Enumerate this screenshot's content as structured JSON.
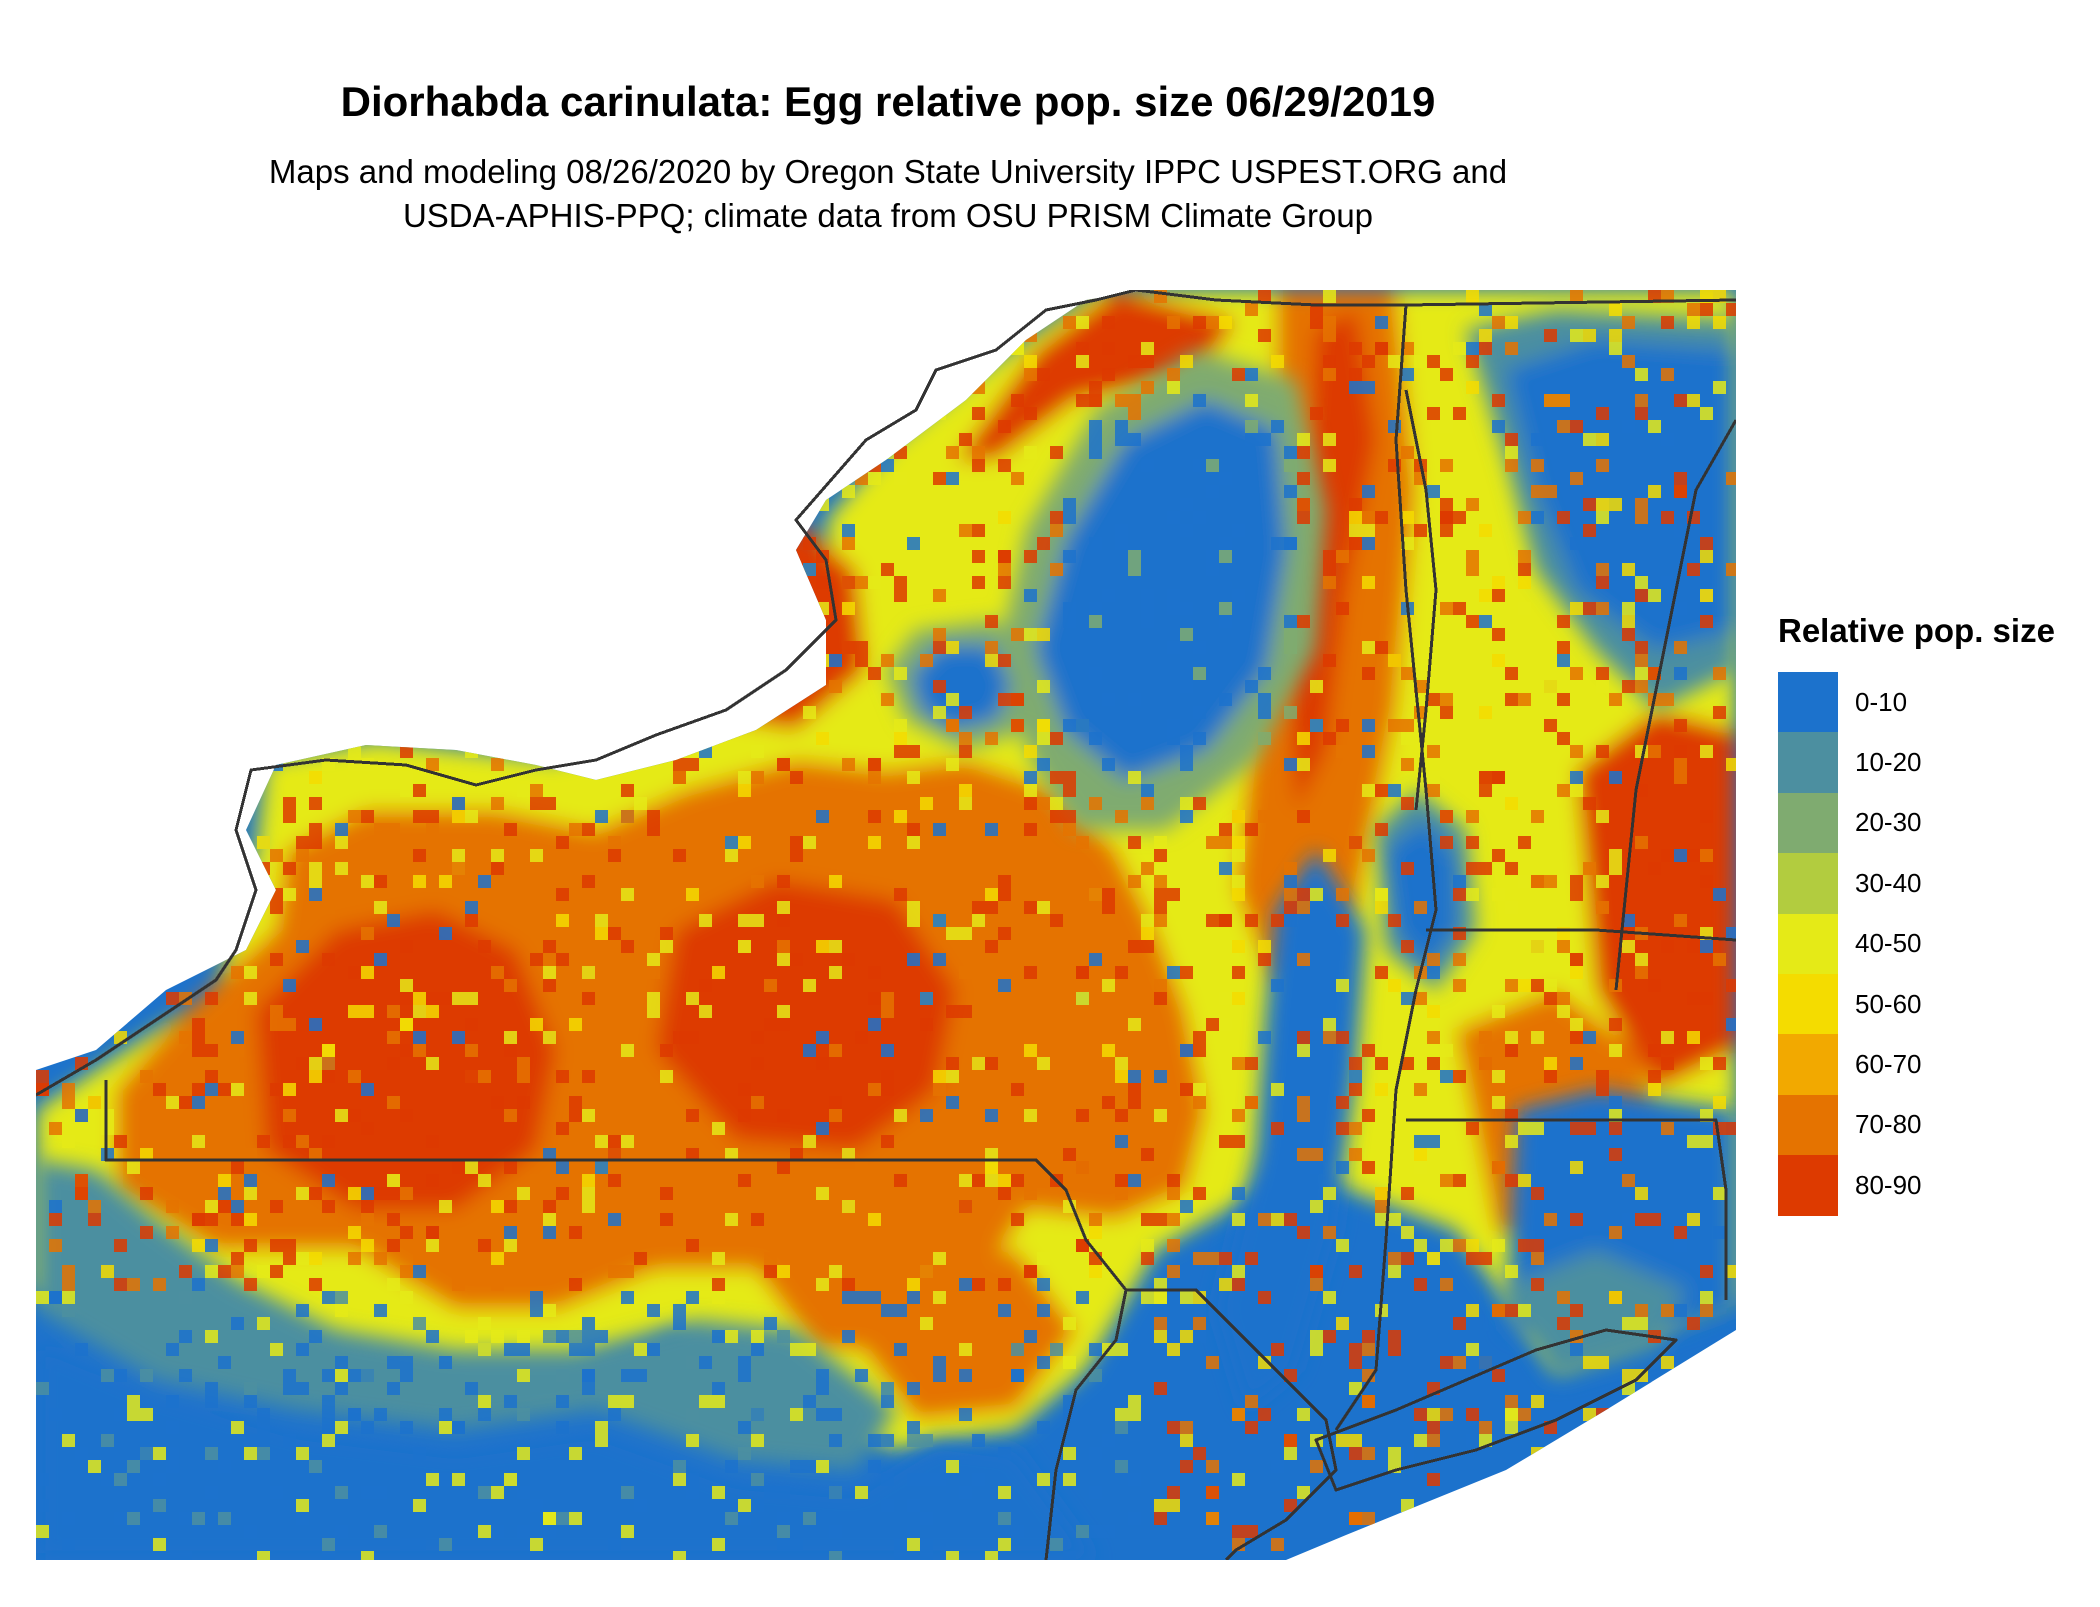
{
  "title": "Diorhabda carinulata: Egg relative pop. size 06/29/2019",
  "subtitle_line1": "Maps and modeling 08/26/2020 by Oregon State University IPPC USPEST.ORG and",
  "subtitle_line2": "USDA-APHIS-PPQ; climate data from OSU PRISM Climate Group",
  "legend": {
    "title": "Relative pop. size",
    "classes": [
      {
        "label": "0-10",
        "color": "#1c72cc"
      },
      {
        "label": "10-20",
        "color": "#4c8fa0"
      },
      {
        "label": "20-30",
        "color": "#7fab70"
      },
      {
        "label": "30-40",
        "color": "#b2cc3f"
      },
      {
        "label": "40-50",
        "color": "#e5ea17"
      },
      {
        "label": "50-60",
        "color": "#f4dc00"
      },
      {
        "label": "60-70",
        "color": "#f2a900"
      },
      {
        "label": "70-80",
        "color": "#e57300"
      },
      {
        "label": "80-90",
        "color": "#dd3a00"
      }
    ]
  },
  "map": {
    "region": "New York, Pennsylvania, New Jersey, Connecticut, Vermont, Massachusetts",
    "boundary_color": "#333333"
  }
}
